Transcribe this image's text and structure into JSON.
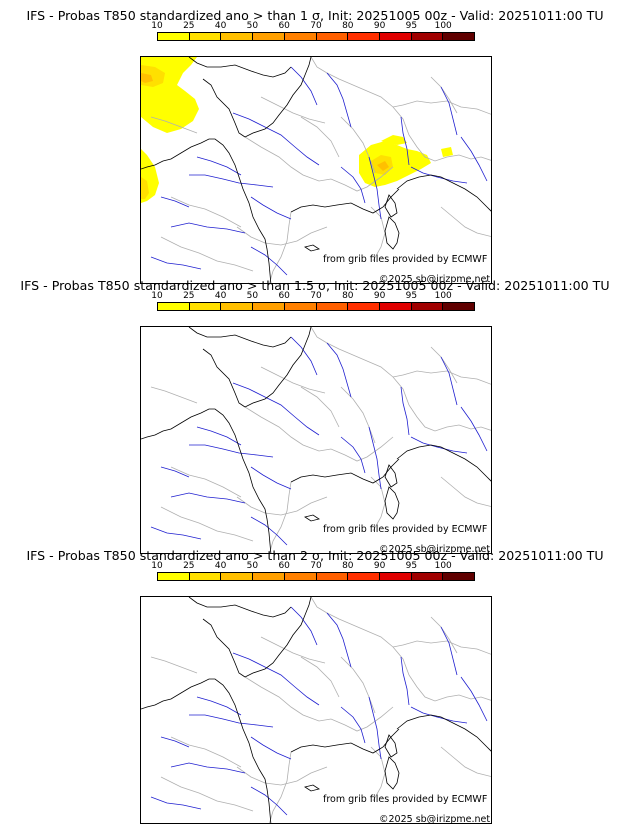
{
  "colorbar": {
    "ticks": [
      "10",
      "25",
      "40",
      "50",
      "60",
      "70",
      "80",
      "90",
      "95",
      "100"
    ],
    "colors": [
      "#ffff00",
      "#ffe000",
      "#ffc000",
      "#ffa000",
      "#ff8000",
      "#ff6000",
      "#ff3000",
      "#e00000",
      "#a00000",
      "#600000"
    ]
  },
  "panels": [
    {
      "title": "IFS - Probas T850  standardized ano > than 1 σ, Init: 20251005 00z - Valid: 20251011:00 TU",
      "credit_source": "from grib files provided by ECMWF",
      "credit_copyright": "©2025 sb@irizpme.net",
      "shaded": true
    },
    {
      "title": "IFS - Probas T850  standardized ano > than 1.5 σ, Init: 20251005 00z - Valid: 20251011:00 TU",
      "credit_source": "from grib files provided by ECMWF",
      "credit_copyright": "©2025 sb@irizpme.net",
      "shaded": false
    },
    {
      "title": "IFS - Probas T850  standardized ano > than 2 σ, Init: 20251005 00z - Valid: 20251011:00 TU",
      "credit_source": "from grib files provided by ECMWF",
      "credit_copyright": "©2025 sb@irizpme.net",
      "shaded": false
    }
  ]
}
